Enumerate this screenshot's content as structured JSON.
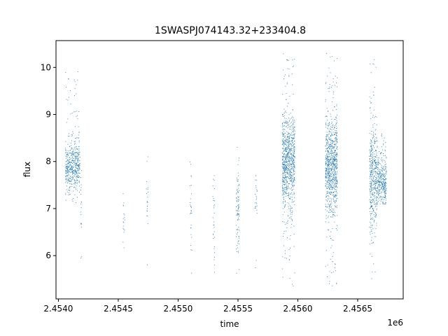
{
  "chart_data": {
    "type": "scatter",
    "title": "1SWASPJ074143.32+233404.8",
    "xlabel": "time",
    "ylabel": "flux",
    "x_offset_label": "1e6",
    "xlim": [
      2453980,
      2456880
    ],
    "ylim": [
      5.08,
      10.57
    ],
    "x_ticks": [
      2454000,
      2454500,
      2455000,
      2455500,
      2456000,
      2456500
    ],
    "x_tick_labels": [
      "2.4540",
      "2.4545",
      "2.4550",
      "2.4555",
      "2.4560",
      "2.4565"
    ],
    "y_ticks": [
      6,
      7,
      8,
      9,
      10
    ],
    "y_tick_labels": [
      "6",
      "7",
      "8",
      "9",
      "10"
    ],
    "grid": false,
    "marker_color": "#1f77b4",
    "series": [
      {
        "clusters": [
          {
            "x_range": [
              2454060,
              2454180
            ],
            "y_center": 7.9,
            "y_spread": 0.25,
            "y_range": [
              7.05,
              9.95
            ],
            "points": 500
          },
          {
            "x_range": [
              2454185,
              2454195
            ],
            "y_center": 7.0,
            "y_spread": 0.5,
            "y_range": [
              5.8,
              8.0
            ],
            "points": 20
          },
          {
            "x_range": [
              2454540,
              2454555
            ],
            "y_center": 6.6,
            "y_spread": 0.4,
            "y_range": [
              6.1,
              7.5
            ],
            "points": 18
          },
          {
            "x_range": [
              2454735,
              2454748
            ],
            "y_center": 7.0,
            "y_spread": 0.5,
            "y_range": [
              5.6,
              8.1
            ],
            "points": 22
          },
          {
            "x_range": [
              2455100,
              2455115
            ],
            "y_center": 6.8,
            "y_spread": 0.6,
            "y_range": [
              5.6,
              8.1
            ],
            "points": 28
          },
          {
            "x_range": [
              2455290,
              2455305
            ],
            "y_center": 6.6,
            "y_spread": 0.6,
            "y_range": [
              5.5,
              7.7
            ],
            "points": 30
          },
          {
            "x_range": [
              2455485,
              2455510
            ],
            "y_center": 6.9,
            "y_spread": 0.6,
            "y_range": [
              5.5,
              8.3
            ],
            "points": 90
          },
          {
            "x_range": [
              2455640,
              2455660
            ],
            "y_center": 7.3,
            "y_spread": 0.3,
            "y_range": [
              5.7,
              7.7
            ],
            "points": 25
          },
          {
            "x_range": [
              2455870,
              2455975
            ],
            "y_center": 8.0,
            "y_spread": 0.5,
            "y_range": [
              5.3,
              10.3
            ],
            "points": 900
          },
          {
            "x_range": [
              2456230,
              2456330
            ],
            "y_center": 7.9,
            "y_spread": 0.5,
            "y_range": [
              5.3,
              10.3
            ],
            "points": 900
          },
          {
            "x_range": [
              2456600,
              2456660
            ],
            "y_center": 7.7,
            "y_spread": 0.6,
            "y_range": [
              5.4,
              10.2
            ],
            "points": 450
          },
          {
            "x_range": [
              2456660,
              2456740
            ],
            "y_center": 7.6,
            "y_spread": 0.25,
            "y_range": [
              7.1,
              8.6
            ],
            "points": 350
          }
        ]
      }
    ]
  }
}
